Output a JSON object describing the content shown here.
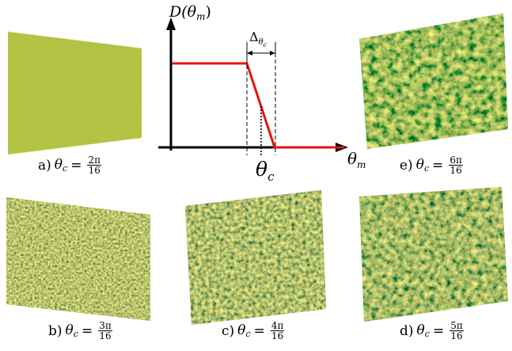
{
  "panels": [
    {
      "letter": "a)",
      "num": "2π",
      "den": "16"
    },
    {
      "letter": "b)",
      "num": "3π",
      "den": "16"
    },
    {
      "letter": "c)",
      "num": "4π",
      "den": "16"
    },
    {
      "letter": "d)",
      "num": "5π",
      "den": "16"
    },
    {
      "letter": "e)",
      "num": "6π",
      "den": "16"
    }
  ],
  "caption_var": "θ",
  "caption_sub": "c",
  "caption_eq": "=",
  "diagram": {
    "ylabel": "D(θ",
    "ylabel_sub": "m",
    "ylabel_close": ")",
    "xlabel": "θ",
    "xlabel_sub": "m",
    "theta_c": "θ",
    "theta_c_sub": "c",
    "delta": "Δ",
    "delta_sub": "θ",
    "delta_subsub": "c"
  },
  "colors": {
    "curve": "#e11414",
    "surface_base": "#b5c437",
    "surface_dark": "#4f7a2a",
    "surface_light": "#d8cf4a"
  }
}
